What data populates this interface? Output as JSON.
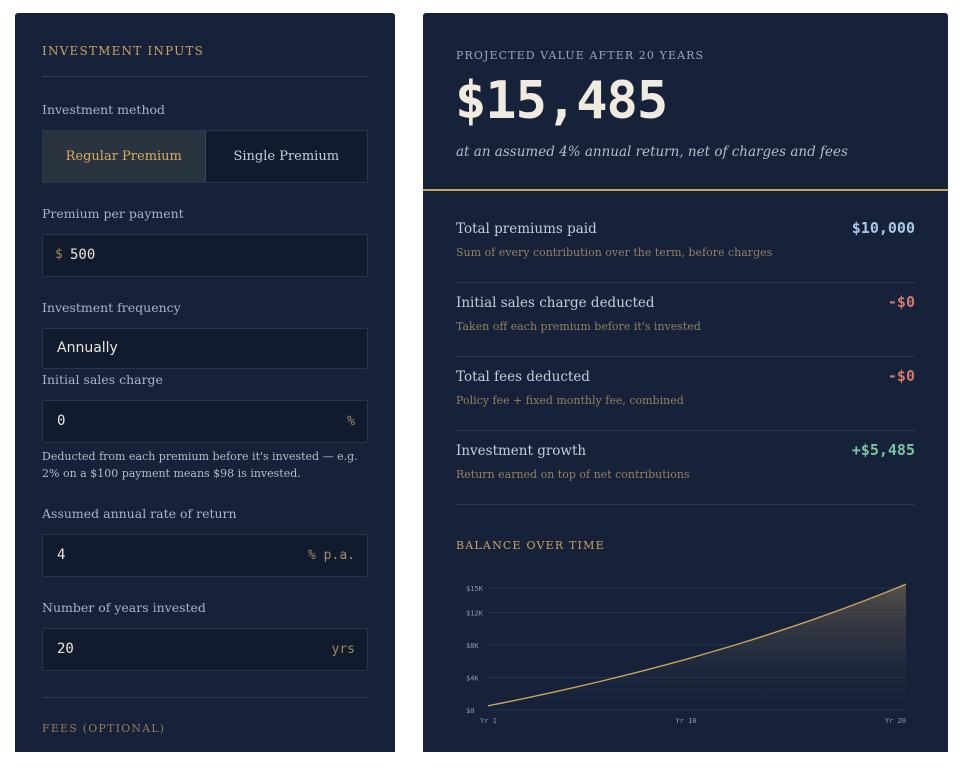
{
  "inputs": {
    "section_title": "INVESTMENT INPUTS",
    "method": {
      "label": "Investment method",
      "options": [
        "Regular Premium",
        "Single Premium"
      ],
      "selected": "Regular Premium"
    },
    "premium": {
      "label": "Premium per payment",
      "prefix": "$",
      "value": "500"
    },
    "frequency": {
      "label": "Investment frequency",
      "value": "Annually"
    },
    "sales_charge": {
      "label": "Initial sales charge",
      "value": "0",
      "suffix": "%",
      "help": "Deducted from each premium before it's invested — e.g. 2% on a $100 payment means $98 is invested."
    },
    "rate": {
      "label": "Assumed annual rate of return",
      "value": "4",
      "suffix": "% p.a."
    },
    "years": {
      "label": "Number of years invested",
      "value": "20",
      "suffix": "yrs"
    },
    "fees_title": "FEES (OPTIONAL)"
  },
  "results": {
    "headline_label": "PROJECTED VALUE AFTER 20 YEARS",
    "headline_value": "$15,485",
    "headline_sub": "at an assumed 4% annual return, net of charges and fees",
    "rows": [
      {
        "title": "Total premiums paid",
        "desc": "Sum of every contribution over the term, before charges",
        "value": "$10,000",
        "color": "#a9c8e6"
      },
      {
        "title": "Initial sales charge deducted",
        "desc": "Taken off each premium before it's invested",
        "value": "-$0",
        "color": "#d47a6a"
      },
      {
        "title": "Total fees deducted",
        "desc": "Policy fee + fixed monthly fee, combined",
        "value": "-$0",
        "color": "#d47a6a"
      },
      {
        "title": "Investment growth",
        "desc": "Return earned on top of net contributions",
        "value": "+$5,485",
        "color": "#7cc3a0"
      }
    ],
    "chart_title": "BALANCE OVER TIME"
  },
  "colors": {
    "panel": "#15223a",
    "accent": "#c9a35e",
    "negative": "#d47a6a",
    "positive": "#7cc3a0"
  },
  "chart_data": {
    "type": "area",
    "title": "BALANCE OVER TIME",
    "x": [
      1,
      2,
      3,
      4,
      5,
      6,
      7,
      8,
      9,
      10,
      11,
      12,
      13,
      14,
      15,
      16,
      17,
      18,
      19,
      20
    ],
    "x_tick_labels": [
      {
        "x": 1,
        "label": "Yr 1"
      },
      {
        "x": 10,
        "label": "Yr 10"
      },
      {
        "x": 20,
        "label": "Yr 20"
      }
    ],
    "y_ticks": [
      0,
      4000,
      8000,
      12000,
      15000
    ],
    "y_tick_labels": [
      "$0",
      "$4K",
      "$8K",
      "$12K",
      "$15K"
    ],
    "ylim": [
      0,
      16000
    ],
    "series": [
      {
        "values": [
          520,
          1061,
          1623,
          2208,
          2816,
          3449,
          4107,
          4791,
          5503,
          6243,
          7013,
          7813,
          8646,
          9512,
          10412,
          11349,
          12323,
          13336,
          14389,
          15485
        ]
      }
    ],
    "grid": true,
    "line_color": "#c9a35e"
  }
}
